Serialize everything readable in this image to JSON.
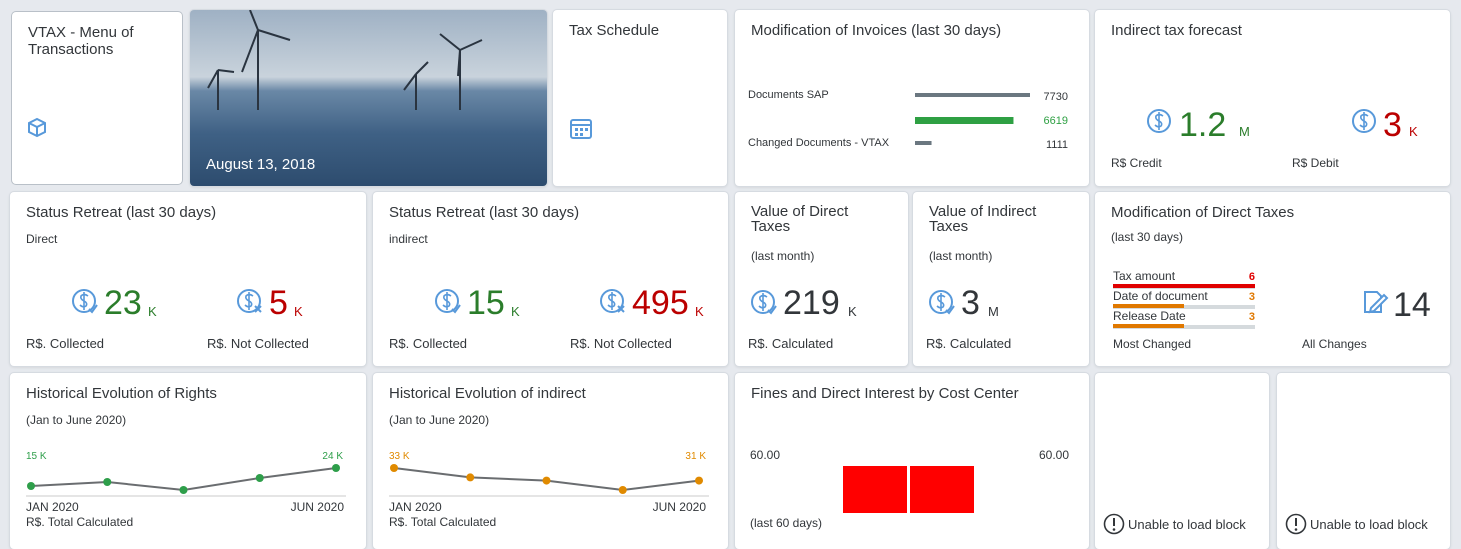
{
  "tiles": {
    "menu": {
      "title": "VTAX - Menu of Transactions"
    },
    "news": {
      "date": "August 13, 2018"
    },
    "schedule": {
      "title": "Tax Schedule"
    },
    "invoices": {
      "title": "Modification of Invoices (last 30 days)",
      "bars": [
        {
          "label": "Documents SAP",
          "value": 7730,
          "color": "#6b7780"
        },
        {
          "value": 6619,
          "color": "#2ea043"
        },
        {
          "label": "Changed Documents - VTAX",
          "value": 1111,
          "color": "#6b7780"
        }
      ]
    },
    "forecast": {
      "title": "Indirect tax forecast",
      "credit": {
        "value": 1.2,
        "unit": "M",
        "label": "R$ Credit"
      },
      "debit": {
        "value": 3,
        "unit": "K",
        "label": "R$ Debit"
      }
    },
    "retreat_direct": {
      "title": "Status Retreat (last 30 days)",
      "subtitle": "Direct",
      "collected": {
        "value": 23,
        "unit": "K",
        "label": "R$. Collected"
      },
      "not_collected": {
        "value": 5,
        "unit": "K",
        "label": "R$. Not Collected"
      }
    },
    "retreat_indirect": {
      "title": "Status Retreat (last 30 days)",
      "subtitle": "indirect",
      "collected": {
        "value": 15,
        "unit": "K",
        "label": "R$. Collected"
      },
      "not_collected": {
        "value": 495,
        "unit": "K",
        "label": "R$. Not Collected"
      }
    },
    "direct_value": {
      "title": "Value of Direct Taxes",
      "subtitle": "(last month)",
      "value": 219,
      "unit": "K",
      "label": "R$. Calculated"
    },
    "indirect_value": {
      "title": "Value of Indirect Taxes",
      "subtitle": "(last month)",
      "value": 3,
      "unit": "M",
      "label": "R$. Calculated"
    },
    "direct_mods": {
      "title": "Modification of Direct Taxes",
      "subtitle": "(last 30 days)",
      "bars": [
        {
          "label": "Tax amount",
          "value": 6,
          "color": "#e00000"
        },
        {
          "label": "Date of document",
          "value": 3,
          "color": "#e07800"
        },
        {
          "label": "Release Date",
          "value": 3,
          "color": "#e07800"
        }
      ],
      "most_label": "Most Changed",
      "total": 14,
      "total_label": "All Changes"
    },
    "rights_history": {
      "title": "Historical Evolution of Rights",
      "subtitle": "(Jan to June 2020)",
      "values": [
        15,
        17,
        13,
        19,
        24
      ],
      "first_label": "15 K",
      "last_label": "24 K",
      "start": "JAN 2020",
      "end": "JUN 2020",
      "footer": "R$. Total Calculated",
      "color": "#2e9e4a"
    },
    "indirect_history": {
      "title": "Historical Evolution of indirect",
      "subtitle": "(Jan to June 2020)",
      "values": [
        33,
        31.5,
        31,
        29.5,
        31
      ],
      "first_label": "33 K",
      "last_label": "31 K",
      "start": "JAN 2020",
      "end": "JUN 2020",
      "footer": "R$. Total Calculated",
      "color": "#e08a00"
    },
    "fines": {
      "title": "Fines and Direct Interest by Cost Center",
      "values": [
        60,
        60
      ],
      "value_labels": [
        "60.00",
        "60.00"
      ],
      "color": "#ff0000",
      "footer": "(last 60 days)"
    },
    "error_1": {
      "message": "Unable to load block"
    },
    "error_2": {
      "message": "Unable to load block"
    }
  }
}
